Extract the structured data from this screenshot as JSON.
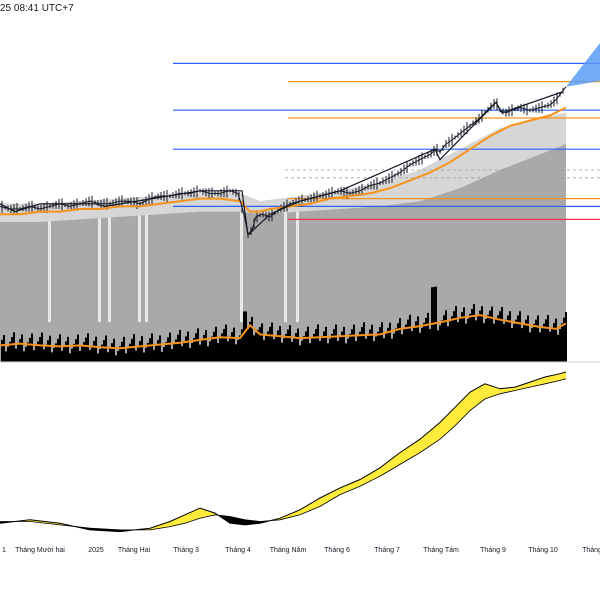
{
  "header": {
    "timestamp": "25 08:41 UTC+7"
  },
  "colors": {
    "level_blue": "#2962ff",
    "level_orange": "#f7931a",
    "level_red": "#f23645",
    "price_line": "#131722",
    "ma_orange": "#f7931a",
    "band_gray": "#9e9e9e",
    "volume_black": "#000000",
    "indicator_fill_yellow": "#ffeb3b",
    "indicator_fill_black": "#000000",
    "projection_blue": "#5b9cf6"
  },
  "chart_data": {
    "type": "line",
    "title": "",
    "xlabel": "",
    "ylabel": "",
    "x_tick_labels": [
      "1",
      "Tháng Mười hai",
      "2025",
      "Tháng Hai",
      "Tháng 3",
      "Tháng 4",
      "Tháng Năm",
      "Tháng 6",
      "Tháng 7",
      "Tháng Tám",
      "Tháng 9",
      "Tháng 10",
      "Tháng"
    ],
    "price_panel": {
      "ylim": [
        0,
        100
      ],
      "price": [
        [
          0,
          36
        ],
        [
          10,
          35
        ],
        [
          20,
          35
        ],
        [
          30,
          36
        ],
        [
          40,
          35
        ],
        [
          50,
          36
        ],
        [
          60,
          37
        ],
        [
          70,
          36
        ],
        [
          80,
          37
        ],
        [
          90,
          38
        ],
        [
          100,
          37
        ],
        [
          110,
          37
        ],
        [
          120,
          38
        ],
        [
          130,
          38
        ],
        [
          140,
          37
        ],
        [
          150,
          39
        ],
        [
          160,
          40
        ],
        [
          170,
          40
        ],
        [
          180,
          41
        ],
        [
          190,
          41
        ],
        [
          200,
          42
        ],
        [
          210,
          41
        ],
        [
          220,
          41
        ],
        [
          230,
          42
        ],
        [
          238,
          41
        ],
        [
          244,
          33
        ],
        [
          248,
          25
        ],
        [
          252,
          27
        ],
        [
          256,
          32
        ],
        [
          262,
          33
        ],
        [
          270,
          32
        ],
        [
          280,
          35
        ],
        [
          290,
          37
        ],
        [
          300,
          38
        ],
        [
          310,
          39
        ],
        [
          320,
          40
        ],
        [
          330,
          41
        ],
        [
          340,
          42
        ],
        [
          350,
          41
        ],
        [
          360,
          42
        ],
        [
          370,
          44
        ],
        [
          380,
          45
        ],
        [
          390,
          47
        ],
        [
          400,
          49
        ],
        [
          410,
          52
        ],
        [
          420,
          54
        ],
        [
          430,
          56
        ],
        [
          436,
          58
        ],
        [
          440,
          57
        ],
        [
          446,
          60
        ],
        [
          450,
          61
        ],
        [
          460,
          64
        ],
        [
          470,
          67
        ],
        [
          480,
          70
        ],
        [
          490,
          74
        ],
        [
          496,
          76
        ],
        [
          500,
          73
        ],
        [
          506,
          72
        ],
        [
          512,
          73
        ],
        [
          520,
          74
        ],
        [
          530,
          73
        ],
        [
          540,
          74
        ],
        [
          550,
          75
        ],
        [
          556,
          77
        ],
        [
          562,
          80
        ],
        [
          566,
          82
        ]
      ],
      "ma_orange": [
        [
          0,
          33
        ],
        [
          20,
          33
        ],
        [
          40,
          34
        ],
        [
          60,
          34
        ],
        [
          80,
          35
        ],
        [
          100,
          35
        ],
        [
          120,
          36
        ],
        [
          140,
          36
        ],
        [
          160,
          37
        ],
        [
          180,
          38
        ],
        [
          200,
          39
        ],
        [
          220,
          39
        ],
        [
          240,
          38
        ],
        [
          250,
          34
        ],
        [
          260,
          34
        ],
        [
          270,
          35
        ],
        [
          290,
          36
        ],
        [
          310,
          37
        ],
        [
          330,
          39
        ],
        [
          350,
          40
        ],
        [
          370,
          41
        ],
        [
          390,
          43
        ],
        [
          410,
          46
        ],
        [
          430,
          49
        ],
        [
          450,
          53
        ],
        [
          470,
          58
        ],
        [
          490,
          63
        ],
        [
          510,
          67
        ],
        [
          530,
          69
        ],
        [
          550,
          71
        ],
        [
          566,
          74
        ]
      ],
      "band_upper": [
        [
          0,
          37
        ],
        [
          40,
          37
        ],
        [
          80,
          38
        ],
        [
          120,
          39
        ],
        [
          160,
          40
        ],
        [
          200,
          41
        ],
        [
          240,
          41
        ],
        [
          260,
          38
        ],
        [
          300,
          40
        ],
        [
          340,
          42
        ],
        [
          380,
          45
        ],
        [
          420,
          50
        ],
        [
          460,
          58
        ],
        [
          500,
          66
        ],
        [
          540,
          70
        ],
        [
          566,
          72
        ]
      ],
      "band_lower": [
        [
          0,
          30
        ],
        [
          40,
          30
        ],
        [
          80,
          31
        ],
        [
          120,
          32
        ],
        [
          160,
          33
        ],
        [
          200,
          34
        ],
        [
          240,
          34
        ],
        [
          260,
          33
        ],
        [
          300,
          34
        ],
        [
          340,
          35
        ],
        [
          380,
          36
        ],
        [
          420,
          38
        ],
        [
          460,
          43
        ],
        [
          500,
          50
        ],
        [
          540,
          56
        ],
        [
          566,
          60
        ]
      ],
      "pivots": [
        [
          0,
          37
        ],
        [
          15,
          34
        ],
        [
          40,
          37
        ],
        [
          95,
          37
        ],
        [
          105,
          36
        ],
        [
          200,
          42
        ],
        [
          242,
          42
        ],
        [
          248,
          25
        ],
        [
          270,
          33
        ],
        [
          300,
          38
        ],
        [
          340,
          42
        ],
        [
          435,
          58
        ],
        [
          440,
          54
        ],
        [
          496,
          76
        ],
        [
          502,
          72
        ],
        [
          562,
          80
        ]
      ],
      "levels": [
        {
          "value": 91,
          "color": "blue"
        },
        {
          "value": 84,
          "color": "orange"
        },
        {
          "value": 73,
          "color": "blue"
        },
        {
          "value": 70,
          "color": "orange"
        },
        {
          "value": 58,
          "color": "blue"
        },
        {
          "value": 39,
          "color": "orange"
        },
        {
          "value": 36,
          "color": "blue"
        },
        {
          "value": 31,
          "color": "red"
        }
      ],
      "projection": [
        [
          566,
          82
        ],
        [
          600,
          95
        ]
      ]
    },
    "volume_panel": {
      "ylim": [
        0,
        100
      ],
      "volume_ma": [
        [
          0,
          18
        ],
        [
          20,
          20
        ],
        [
          40,
          18
        ],
        [
          60,
          17
        ],
        [
          80,
          18
        ],
        [
          100,
          16
        ],
        [
          120,
          15
        ],
        [
          140,
          17
        ],
        [
          160,
          19
        ],
        [
          180,
          21
        ],
        [
          200,
          24
        ],
        [
          220,
          27
        ],
        [
          240,
          26
        ],
        [
          250,
          40
        ],
        [
          260,
          30
        ],
        [
          280,
          28
        ],
        [
          300,
          26
        ],
        [
          320,
          27
        ],
        [
          340,
          28
        ],
        [
          360,
          29
        ],
        [
          380,
          30
        ],
        [
          400,
          36
        ],
        [
          420,
          39
        ],
        [
          440,
          43
        ],
        [
          460,
          48
        ],
        [
          480,
          51
        ],
        [
          500,
          46
        ],
        [
          520,
          42
        ],
        [
          540,
          38
        ],
        [
          556,
          36
        ],
        [
          566,
          42
        ]
      ]
    },
    "indicator_panel": {
      "ylim": [
        0,
        100
      ],
      "main": [
        [
          0,
          10
        ],
        [
          30,
          12
        ],
        [
          60,
          10
        ],
        [
          90,
          6
        ],
        [
          120,
          5
        ],
        [
          150,
          7
        ],
        [
          170,
          11
        ],
        [
          185,
          15
        ],
        [
          200,
          19
        ],
        [
          215,
          16
        ],
        [
          230,
          10
        ],
        [
          245,
          9
        ],
        [
          260,
          10
        ],
        [
          280,
          13
        ],
        [
          300,
          18
        ],
        [
          320,
          25
        ],
        [
          340,
          31
        ],
        [
          360,
          36
        ],
        [
          380,
          43
        ],
        [
          400,
          52
        ],
        [
          420,
          60
        ],
        [
          440,
          70
        ],
        [
          455,
          79
        ],
        [
          470,
          88
        ],
        [
          485,
          93
        ],
        [
          500,
          90
        ],
        [
          515,
          91
        ],
        [
          530,
          94
        ],
        [
          545,
          97
        ],
        [
          560,
          99
        ],
        [
          566,
          100
        ]
      ],
      "signal": [
        [
          0,
          11
        ],
        [
          30,
          11
        ],
        [
          60,
          9
        ],
        [
          90,
          7
        ],
        [
          120,
          6
        ],
        [
          150,
          6
        ],
        [
          170,
          8
        ],
        [
          185,
          10
        ],
        [
          200,
          13
        ],
        [
          215,
          15
        ],
        [
          230,
          14
        ],
        [
          245,
          12
        ],
        [
          260,
          11
        ],
        [
          280,
          12
        ],
        [
          300,
          15
        ],
        [
          320,
          20
        ],
        [
          340,
          27
        ],
        [
          360,
          32
        ],
        [
          380,
          38
        ],
        [
          400,
          45
        ],
        [
          420,
          52
        ],
        [
          440,
          60
        ],
        [
          455,
          68
        ],
        [
          470,
          77
        ],
        [
          485,
          84
        ],
        [
          500,
          87
        ],
        [
          515,
          89
        ],
        [
          530,
          91
        ],
        [
          545,
          93
        ],
        [
          560,
          95
        ],
        [
          566,
          96
        ]
      ]
    }
  }
}
